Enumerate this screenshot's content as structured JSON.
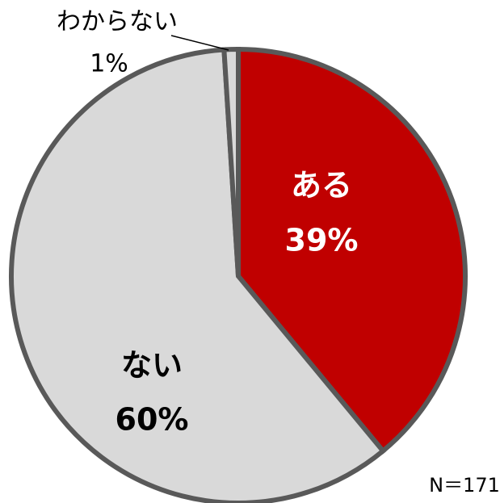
{
  "chart_data": {
    "type": "pie",
    "categories": [
      "ある",
      "ない",
      "わからない"
    ],
    "values": [
      39,
      60,
      1
    ],
    "value_labels": [
      "39%",
      "60%",
      "1%"
    ],
    "colors": [
      "#c00000",
      "#d9d9d9",
      "#d9d9d9"
    ],
    "note": "N＝171"
  }
}
